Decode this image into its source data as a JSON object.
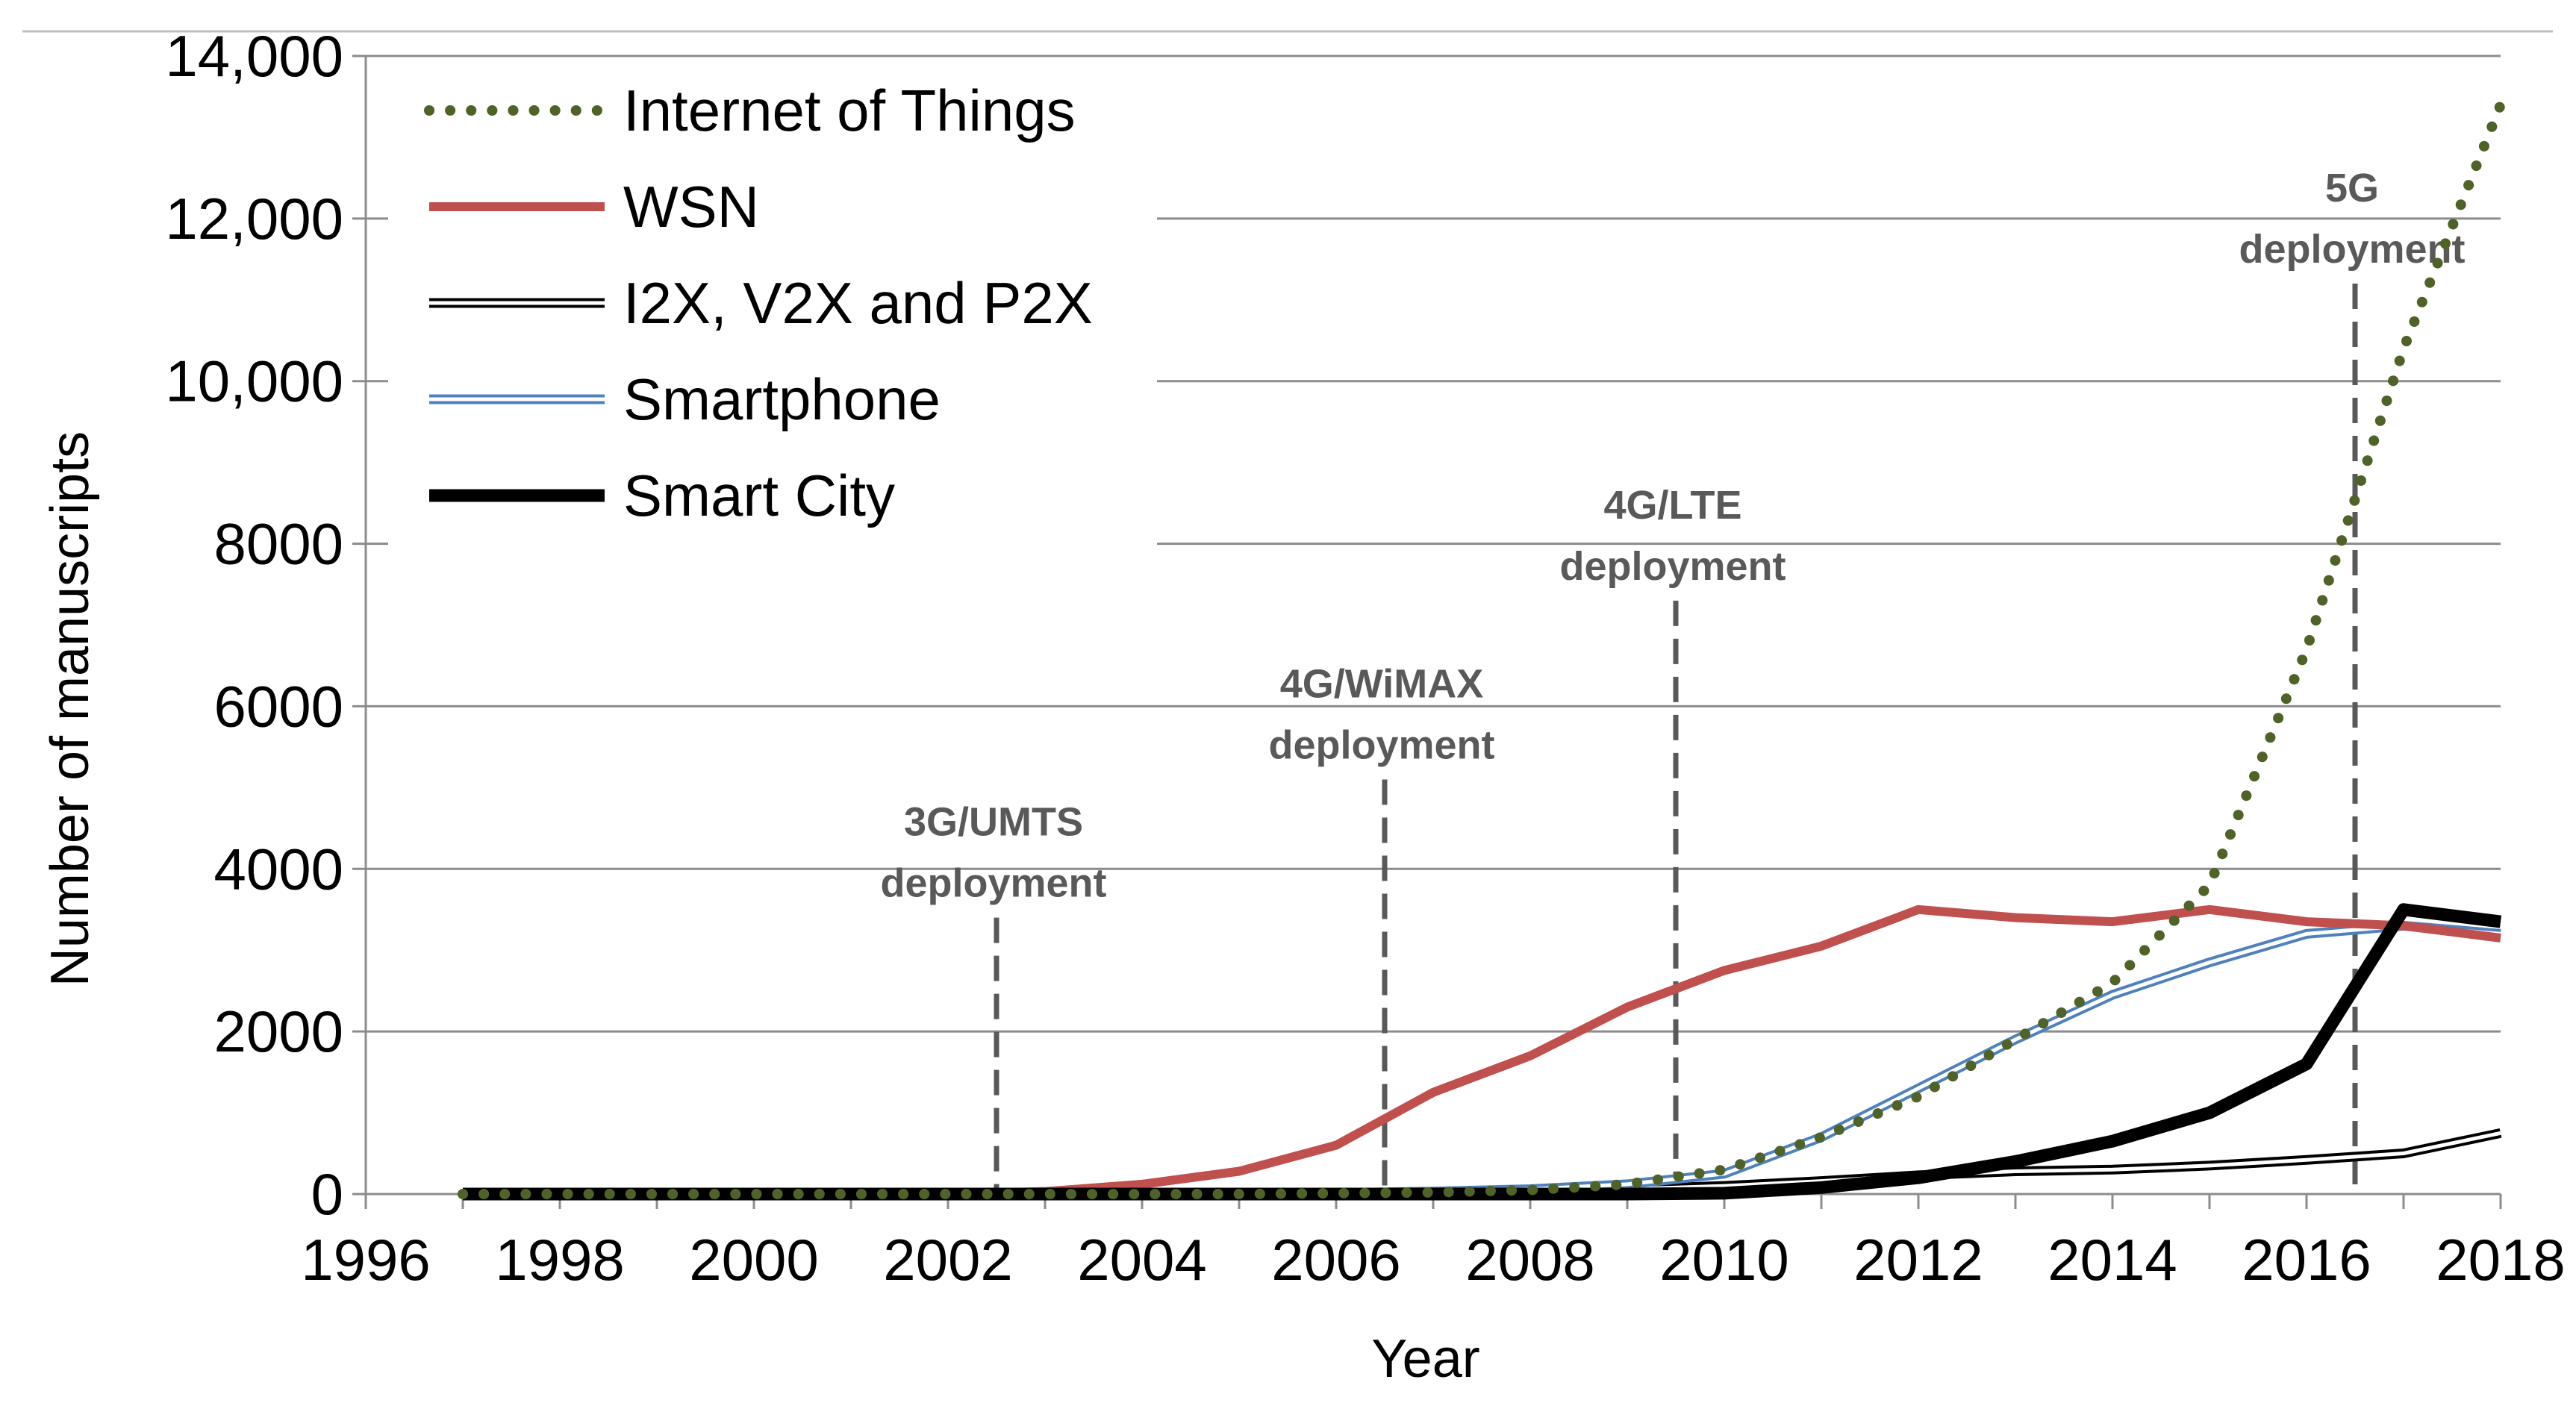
{
  "chart_data": {
    "type": "line",
    "xlabel": "Year",
    "ylabel": "Number of manuscripts",
    "xlim": [
      1996,
      2018
    ],
    "ylim": [
      0,
      14000
    ],
    "x_ticks": [
      "1996",
      "1998",
      "2000",
      "2002",
      "2004",
      "2006",
      "2008",
      "2010",
      "2012",
      "2014",
      "2016",
      "2018"
    ],
    "y_ticks": [
      "0",
      "2000",
      "4000",
      "6000",
      "8000",
      "10,000",
      "12,000",
      "14,000"
    ],
    "grid": "horizontal",
    "legend_position": "top-left",
    "x": [
      1997,
      1998,
      1999,
      2000,
      2001,
      2002,
      2003,
      2004,
      2005,
      2006,
      2007,
      2008,
      2009,
      2010,
      2011,
      2012,
      2013,
      2014,
      2015,
      2016,
      2017,
      2018
    ],
    "series": [
      {
        "name": "Internet of Things",
        "style": "dotted",
        "color": "#4f6228",
        "values": [
          0,
          0,
          0,
          0,
          0,
          0,
          0,
          0,
          0,
          10,
          20,
          50,
          120,
          300,
          700,
          1200,
          1900,
          2600,
          3800,
          6700,
          10400,
          13400
        ]
      },
      {
        "name": "WSN",
        "style": "solid",
        "color": "#c0504d",
        "values": [
          0,
          0,
          0,
          10,
          0,
          0,
          30,
          120,
          280,
          600,
          1250,
          1700,
          2300,
          2750,
          3050,
          3500,
          3400,
          3350,
          3500,
          3350,
          3300,
          3150
        ]
      },
      {
        "name": "I2X, V2X and P2X",
        "style": "double",
        "color": "#000000",
        "values": [
          0,
          0,
          0,
          0,
          0,
          0,
          0,
          0,
          0,
          0,
          10,
          30,
          60,
          100,
          160,
          230,
          280,
          300,
          350,
          420,
          500,
          750
        ]
      },
      {
        "name": "Smartphone",
        "style": "double",
        "color": "#4f81bd",
        "values": [
          0,
          0,
          0,
          0,
          0,
          0,
          0,
          0,
          0,
          10,
          30,
          60,
          120,
          250,
          700,
          1300,
          1900,
          2450,
          2850,
          3200,
          3300,
          3200
        ]
      },
      {
        "name": "Smart City",
        "style": "solid-thick",
        "color": "#000000",
        "values": [
          0,
          0,
          0,
          0,
          0,
          0,
          0,
          0,
          0,
          0,
          0,
          0,
          0,
          10,
          80,
          200,
          400,
          650,
          1000,
          1600,
          3500,
          3350
        ]
      }
    ],
    "annotations": [
      {
        "year": 2002.5,
        "top": 3400,
        "line1": "3G/UMTS",
        "line2": "deployment"
      },
      {
        "year": 2006.5,
        "top": 5100,
        "line1": "4G/WiMAX",
        "line2": "deployment"
      },
      {
        "year": 2009.5,
        "top": 7300,
        "line1": "4G/LTE",
        "line2": "deployment"
      },
      {
        "year": 2016.5,
        "top": 11200,
        "line1": "5G",
        "line2": "deployment"
      }
    ]
  }
}
